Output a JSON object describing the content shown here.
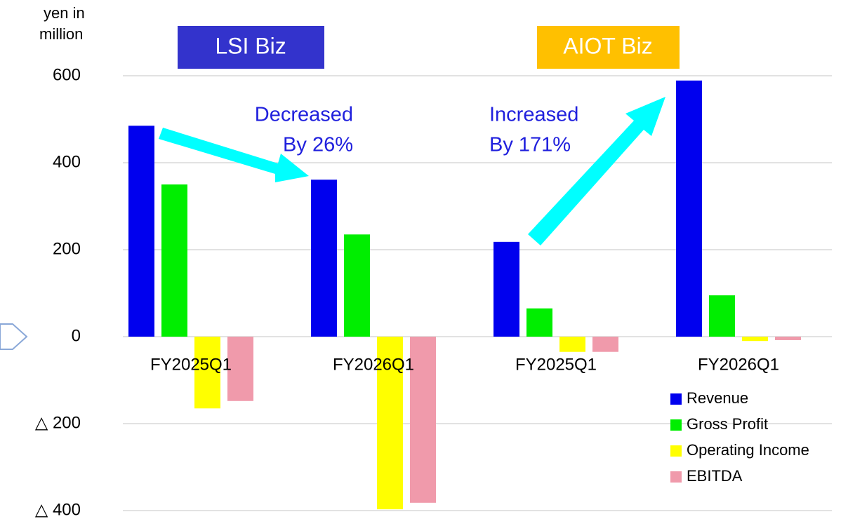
{
  "chart_data": {
    "type": "bar",
    "ylabel": [
      "yen in",
      "million"
    ],
    "segments": [
      "LSI Biz",
      "AIOT Biz"
    ],
    "annotations": [
      {
        "lines": [
          "Decreased",
          "By 26%"
        ]
      },
      {
        "lines": [
          "Increased",
          "By 171%"
        ]
      }
    ],
    "categories": [
      "FY2025Q1",
      "FY2026Q1",
      "FY2025Q1",
      "FY2026Q1"
    ],
    "series": [
      {
        "name": "Revenue",
        "color": "#0000ee",
        "values": [
          485,
          361,
          218,
          589
        ]
      },
      {
        "name": "Gross Profit",
        "color": "#00ee00",
        "values": [
          350,
          235,
          65,
          95
        ]
      },
      {
        "name": "Operating Income",
        "color": "#ffff00",
        "values": [
          -165,
          -397,
          -35,
          -10
        ]
      },
      {
        "name": "EBITDA",
        "color": "#f09aab",
        "values": [
          -148,
          -382,
          -35,
          -8
        ]
      }
    ],
    "ylim": [
      -400,
      600
    ],
    "yticks": [
      {
        "value": -400,
        "label": "△ 400"
      },
      {
        "value": -200,
        "label": "△ 200"
      },
      0,
      200,
      400,
      600
    ],
    "grid": true,
    "legend": "lower right"
  }
}
